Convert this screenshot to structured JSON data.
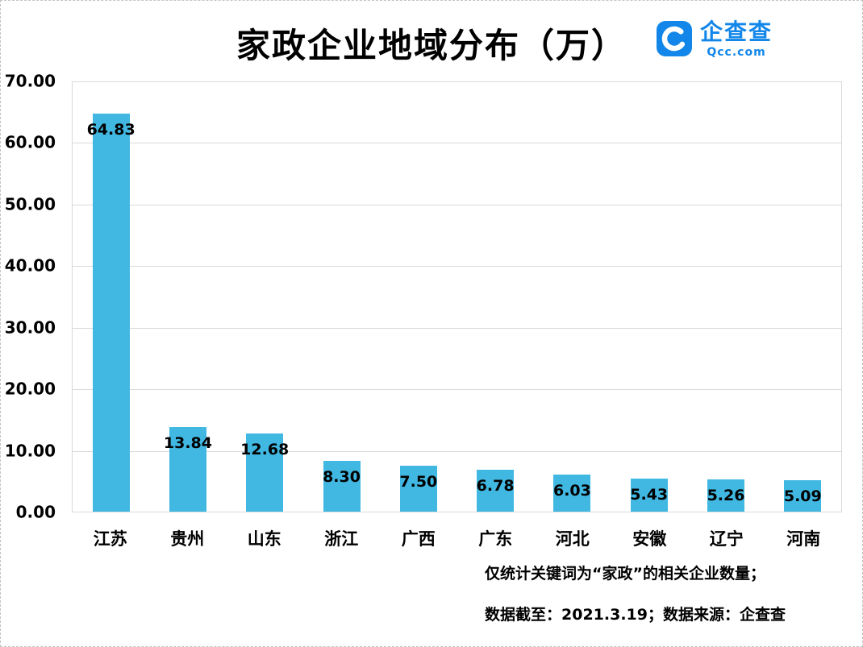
{
  "page": {
    "background": "#ffffff"
  },
  "logo": {
    "name": "企查查",
    "domain": "Qcc.com",
    "color": "#1287e9"
  },
  "chart_data": {
    "type": "bar",
    "title": "家政企业地域分布（万）",
    "categories": [
      "江苏",
      "贵州",
      "山东",
      "浙江",
      "广西",
      "广东",
      "河北",
      "安徽",
      "辽宁",
      "河南"
    ],
    "values": [
      64.83,
      13.84,
      12.68,
      8.3,
      7.5,
      6.78,
      6.03,
      5.43,
      5.26,
      5.09
    ],
    "value_labels": [
      "64.83",
      "13.84",
      "12.68",
      "8.30",
      "7.50",
      "6.78",
      "6.03",
      "5.43",
      "5.26",
      "5.09"
    ],
    "xlabel": "",
    "ylabel": "",
    "ylim": [
      0,
      70
    ],
    "ytick_values": [
      0,
      10,
      20,
      30,
      40,
      50,
      60,
      70
    ],
    "ytick_labels": [
      "0.00",
      "10.00",
      "20.00",
      "30.00",
      "40.00",
      "50.00",
      "60.00",
      "70.00"
    ],
    "bar_color": "#41b8e1",
    "grid": true,
    "legend_position": "none",
    "label_position": "inside-end"
  },
  "footnotes": {
    "line1": "仅统计关键词为“家政”的相关企业数量；",
    "line2": "数据截至：2021.3.19；数据来源：企查查"
  }
}
